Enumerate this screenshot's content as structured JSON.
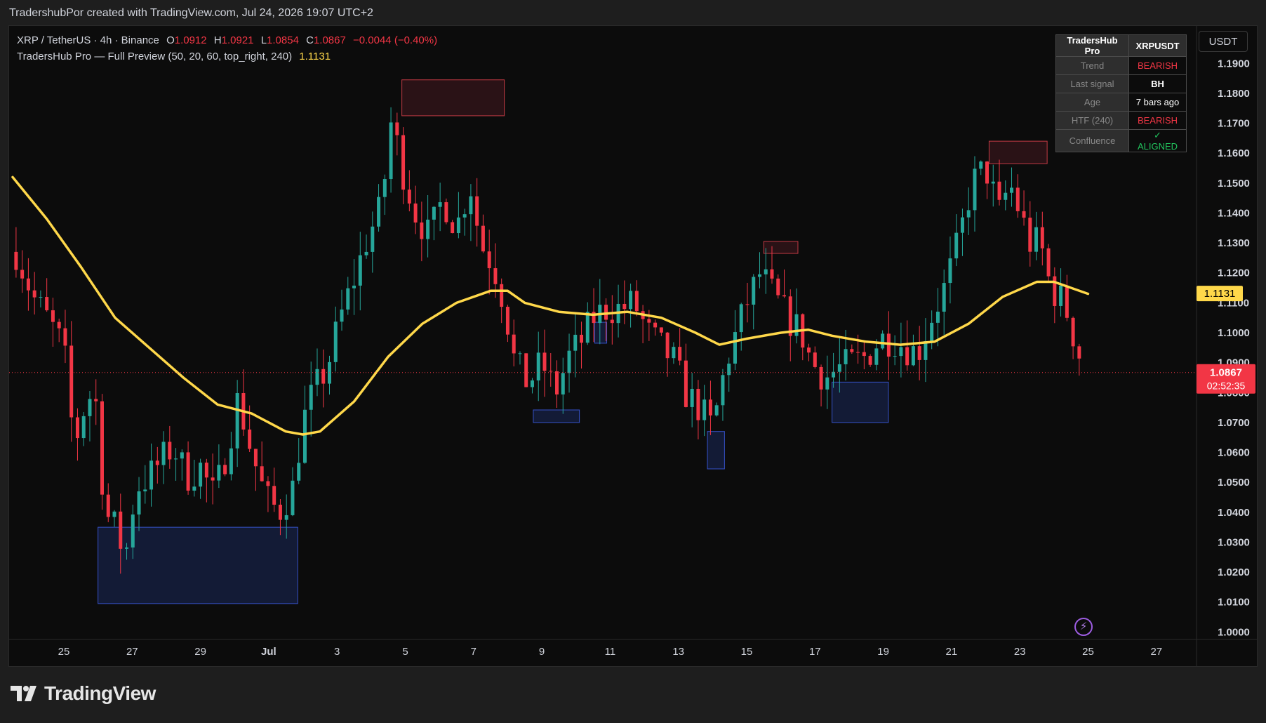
{
  "header": {
    "text": "TradershubPor created with TradingView.com, Jul 24, 2026 19:07 UTC+2"
  },
  "legend": {
    "symbol": "XRP / TetherUS · 4h · Binance",
    "open_label": "O",
    "open": "1.0912",
    "high_label": "H",
    "high": "1.0921",
    "low_label": "L",
    "low": "1.0854",
    "close_label": "C",
    "close": "1.0867",
    "change": "−0.0044 (−0.40%)",
    "indicator": "TradersHub Pro — Full Preview (50, 20, 60, top_right, 240)",
    "indicator_value": "1.1131"
  },
  "unit": "USDT",
  "info_table": {
    "header": [
      "TradersHub Pro",
      "XRPUSDT"
    ],
    "rows": [
      {
        "key": "Trend",
        "value": "BEARISH",
        "color": "#f23645"
      },
      {
        "key": "Last signal",
        "value": "BH",
        "color": "#ffffff"
      },
      {
        "key": "Age",
        "value": "7 bars ago",
        "color": "#ffffff"
      },
      {
        "key": "HTF (240)",
        "value": "BEARISH",
        "color": "#f23645"
      },
      {
        "key": "Confluence",
        "value": "✓ ALIGNED",
        "color": "#22c55e"
      }
    ]
  },
  "logo": {
    "text": "TradingView",
    "icon": "tradingview-logo-icon"
  },
  "colors": {
    "up": "#26a69a",
    "down": "#f23645",
    "ema": "#ffd84a",
    "bg": "#0c0c0c",
    "price_label": "#f23645",
    "ema_label": "#ffd84a"
  },
  "chart_data": {
    "type": "candlestick",
    "x_axis": {
      "labels": [
        "25",
        "27",
        "29",
        "Jul",
        "3",
        "5",
        "7",
        "9",
        "11",
        "13",
        "15",
        "17",
        "19",
        "21",
        "23",
        "25",
        "27"
      ],
      "days": [
        25,
        27,
        29,
        31,
        33,
        35,
        37,
        39,
        41,
        43,
        45,
        47,
        49,
        51,
        53,
        55,
        57
      ]
    },
    "y_axis": {
      "min": 0.9975,
      "max": 1.2025,
      "ticks": [
        "1.0000",
        "1.0100",
        "1.0200",
        "1.0300",
        "1.0400",
        "1.0500",
        "1.0600",
        "1.0700",
        "1.0800",
        "1.0900",
        "1.1000",
        "1.1100",
        "1.1200",
        "1.1300",
        "1.1400",
        "1.1500",
        "1.1600",
        "1.1700",
        "1.1800",
        "1.1900"
      ]
    },
    "last_price": {
      "value": "1.0867",
      "countdown": "02:52:35"
    },
    "ema_label": "1.1131",
    "price_path": [
      [
        23.6,
        1.127
      ],
      [
        24.1,
        1.112
      ],
      [
        24.5,
        1.105
      ],
      [
        25.0,
        1.095
      ],
      [
        25.3,
        1.062
      ],
      [
        25.6,
        1.075
      ],
      [
        25.9,
        1.082
      ],
      [
        26.2,
        1.04
      ],
      [
        26.5,
        1.035
      ],
      [
        26.8,
        1.025
      ],
      [
        27.1,
        1.048
      ],
      [
        27.5,
        1.052
      ],
      [
        27.9,
        1.058
      ],
      [
        28.2,
        1.062
      ],
      [
        28.6,
        1.052
      ],
      [
        29.0,
        1.055
      ],
      [
        29.4,
        1.045
      ],
      [
        29.8,
        1.062
      ],
      [
        30.1,
        1.078
      ],
      [
        30.5,
        1.06
      ],
      [
        30.9,
        1.045
      ],
      [
        31.3,
        1.04
      ],
      [
        31.7,
        1.048
      ],
      [
        32.0,
        1.07
      ],
      [
        32.3,
        1.08
      ],
      [
        32.7,
        1.088
      ],
      [
        33.1,
        1.105
      ],
      [
        33.5,
        1.118
      ],
      [
        33.9,
        1.132
      ],
      [
        34.3,
        1.142
      ],
      [
        34.6,
        1.172
      ],
      [
        34.9,
        1.155
      ],
      [
        35.3,
        1.14
      ],
      [
        35.7,
        1.132
      ],
      [
        36.1,
        1.145
      ],
      [
        36.5,
        1.135
      ],
      [
        36.9,
        1.15
      ],
      [
        37.2,
        1.13
      ],
      [
        37.6,
        1.122
      ],
      [
        37.9,
        1.11
      ],
      [
        38.2,
        1.09
      ],
      [
        38.6,
        1.083
      ],
      [
        39.0,
        1.09
      ],
      [
        39.4,
        1.08
      ],
      [
        39.8,
        1.092
      ],
      [
        40.2,
        1.098
      ],
      [
        40.5,
        1.105
      ],
      [
        40.9,
        1.108
      ],
      [
        41.3,
        1.108
      ],
      [
        41.7,
        1.11
      ],
      [
        42.1,
        1.1
      ],
      [
        42.5,
        1.095
      ],
      [
        42.9,
        1.09
      ],
      [
        43.2,
        1.08
      ],
      [
        43.6,
        1.075
      ],
      [
        44.0,
        1.068
      ],
      [
        44.4,
        1.09
      ],
      [
        44.7,
        1.1
      ],
      [
        45.0,
        1.11
      ],
      [
        45.4,
        1.12
      ],
      [
        45.8,
        1.112
      ],
      [
        46.2,
        1.105
      ],
      [
        46.6,
        1.1
      ],
      [
        46.9,
        1.09
      ],
      [
        47.3,
        1.085
      ],
      [
        47.7,
        1.088
      ],
      [
        48.1,
        1.09
      ],
      [
        48.5,
        1.092
      ],
      [
        48.9,
        1.098
      ],
      [
        49.3,
        1.098
      ],
      [
        49.7,
        1.095
      ],
      [
        50.0,
        1.093
      ],
      [
        50.4,
        1.105
      ],
      [
        50.8,
        1.115
      ],
      [
        51.2,
        1.13
      ],
      [
        51.6,
        1.15
      ],
      [
        52.0,
        1.155
      ],
      [
        52.4,
        1.14
      ],
      [
        52.7,
        1.15
      ],
      [
        53.0,
        1.14
      ],
      [
        53.3,
        1.13
      ],
      [
        53.6,
        1.13
      ],
      [
        53.9,
        1.115
      ],
      [
        54.3,
        1.11
      ],
      [
        54.6,
        1.098
      ],
      [
        54.9,
        1.087
      ]
    ],
    "ema": [
      [
        23.5,
        1.152
      ],
      [
        24.5,
        1.138
      ],
      [
        25.5,
        1.122
      ],
      [
        26.5,
        1.105
      ],
      [
        27.5,
        1.095
      ],
      [
        28.5,
        1.085
      ],
      [
        29.5,
        1.076
      ],
      [
        30.5,
        1.073
      ],
      [
        31.5,
        1.067
      ],
      [
        32.0,
        1.066
      ],
      [
        32.5,
        1.067
      ],
      [
        33.5,
        1.077
      ],
      [
        34.5,
        1.092
      ],
      [
        35.5,
        1.103
      ],
      [
        36.5,
        1.11
      ],
      [
        37.5,
        1.114
      ],
      [
        38.0,
        1.114
      ],
      [
        38.5,
        1.11
      ],
      [
        39.5,
        1.107
      ],
      [
        40.5,
        1.106
      ],
      [
        41.5,
        1.107
      ],
      [
        42.5,
        1.105
      ],
      [
        43.5,
        1.1
      ],
      [
        44.2,
        1.096
      ],
      [
        45.0,
        1.098
      ],
      [
        46.0,
        1.1
      ],
      [
        46.8,
        1.101
      ],
      [
        47.5,
        1.099
      ],
      [
        48.5,
        1.097
      ],
      [
        49.5,
        1.096
      ],
      [
        50.5,
        1.097
      ],
      [
        51.5,
        1.103
      ],
      [
        52.5,
        1.112
      ],
      [
        53.5,
        1.117
      ],
      [
        54.0,
        1.117
      ],
      [
        55.0,
        1.113
      ]
    ],
    "zones": [
      {
        "kind": "supply",
        "d1": 34.9,
        "d2": 37.9,
        "lo": 1.1725,
        "hi": 1.1845
      },
      {
        "kind": "supply",
        "d1": 45.5,
        "d2": 46.5,
        "lo": 1.1265,
        "hi": 1.1305
      },
      {
        "kind": "supply",
        "d1": 52.1,
        "d2": 53.8,
        "lo": 1.1565,
        "hi": 1.164
      },
      {
        "kind": "demand",
        "d1": 26.0,
        "d2": 31.85,
        "lo": 1.0095,
        "hi": 1.035
      },
      {
        "kind": "demand",
        "d1": 38.75,
        "d2": 40.1,
        "lo": 1.07,
        "hi": 1.0742
      },
      {
        "kind": "demand",
        "d1": 40.55,
        "d2": 40.9,
        "lo": 1.0965,
        "hi": 1.1035
      },
      {
        "kind": "demand",
        "d1": 43.85,
        "d2": 44.35,
        "lo": 1.0545,
        "hi": 1.067
      },
      {
        "kind": "demand",
        "d1": 47.5,
        "d2": 49.15,
        "lo": 1.07,
        "hi": 1.0835
      }
    ]
  }
}
